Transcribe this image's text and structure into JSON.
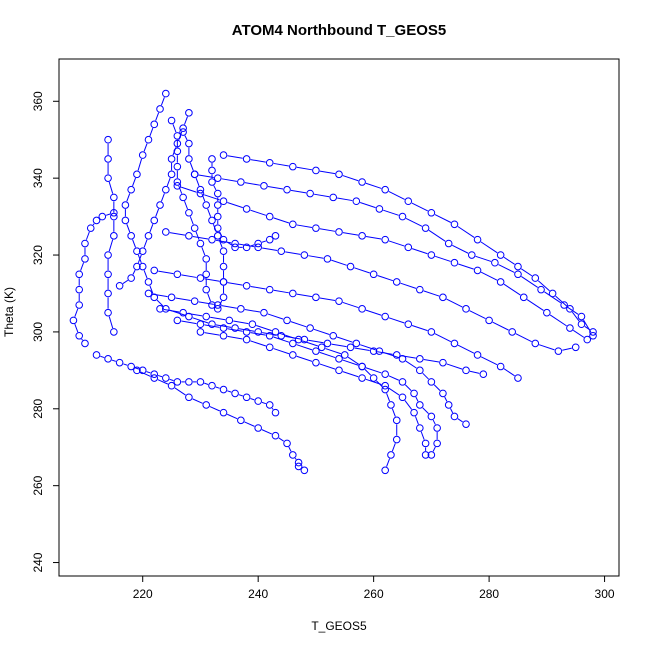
{
  "chart_data": {
    "type": "scatter",
    "title": "ATOM4 Northbound T_GEOS5",
    "xlabel": "T_GEOS5",
    "ylabel": "Theta (K)",
    "xlim": [
      205.5,
      302.5
    ],
    "ylim": [
      236.5,
      371
    ],
    "xticks": [
      220,
      240,
      260,
      280,
      300
    ],
    "yticks": [
      240,
      260,
      280,
      300,
      320,
      340,
      360
    ],
    "grid": false,
    "legend": "none",
    "marker": "open-circle",
    "connected": true,
    "color": "#0000ff",
    "series": [
      {
        "values": [
          [
            224,
            362
          ],
          [
            223,
            358
          ],
          [
            222,
            354
          ],
          [
            221,
            350
          ],
          [
            220,
            346
          ],
          [
            219,
            341
          ],
          [
            218,
            337
          ],
          [
            217,
            333
          ],
          [
            217,
            329
          ],
          [
            218,
            325
          ],
          [
            219,
            321
          ],
          [
            220,
            317
          ],
          [
            221,
            313
          ],
          [
            222,
            309
          ],
          [
            224,
            306
          ],
          [
            228,
            304
          ],
          [
            232,
            302
          ],
          [
            236,
            301
          ],
          [
            240,
            300
          ],
          [
            244,
            299
          ],
          [
            248,
            298
          ],
          [
            252,
            297
          ],
          [
            256,
            296
          ],
          [
            260,
            295
          ],
          [
            264,
            294
          ],
          [
            268,
            293
          ],
          [
            272,
            292
          ],
          [
            276,
            290
          ],
          [
            279,
            289
          ]
        ]
      },
      {
        "values": [
          [
            234,
            346
          ],
          [
            238,
            345
          ],
          [
            242,
            344
          ],
          [
            246,
            343
          ],
          [
            250,
            342
          ],
          [
            254,
            341
          ],
          [
            258,
            339
          ],
          [
            262,
            337
          ],
          [
            266,
            334
          ],
          [
            270,
            331
          ],
          [
            274,
            328
          ],
          [
            278,
            324
          ],
          [
            282,
            320
          ],
          [
            285,
            317
          ],
          [
            288,
            314
          ],
          [
            291,
            310
          ],
          [
            294,
            306
          ],
          [
            296,
            302
          ],
          [
            298,
            300
          ]
        ]
      },
      {
        "values": [
          [
            229,
            341
          ],
          [
            233,
            340
          ],
          [
            237,
            339
          ],
          [
            241,
            338
          ],
          [
            245,
            337
          ],
          [
            249,
            336
          ],
          [
            253,
            335
          ],
          [
            257,
            334
          ],
          [
            261,
            332
          ],
          [
            265,
            330
          ],
          [
            269,
            327
          ],
          [
            273,
            323
          ],
          [
            277,
            320
          ],
          [
            281,
            318
          ],
          [
            285,
            315
          ],
          [
            289,
            311
          ],
          [
            293,
            307
          ],
          [
            296,
            304
          ],
          [
            298,
            299
          ]
        ]
      },
      {
        "values": [
          [
            226,
            338
          ],
          [
            230,
            336
          ],
          [
            234,
            334
          ],
          [
            238,
            332
          ],
          [
            242,
            330
          ],
          [
            246,
            328
          ],
          [
            250,
            327
          ],
          [
            254,
            326
          ],
          [
            258,
            325
          ],
          [
            262,
            324
          ],
          [
            266,
            322
          ],
          [
            270,
            320
          ],
          [
            274,
            318
          ],
          [
            278,
            316
          ],
          [
            282,
            313
          ],
          [
            286,
            309
          ],
          [
            290,
            305
          ],
          [
            294,
            301
          ],
          [
            297,
            298
          ]
        ]
      },
      {
        "values": [
          [
            224,
            326
          ],
          [
            228,
            325
          ],
          [
            232,
            324
          ],
          [
            236,
            323
          ],
          [
            240,
            322
          ],
          [
            244,
            321
          ],
          [
            248,
            320
          ],
          [
            252,
            319
          ],
          [
            256,
            317
          ],
          [
            260,
            315
          ],
          [
            264,
            313
          ],
          [
            268,
            311
          ],
          [
            272,
            309
          ],
          [
            276,
            306
          ],
          [
            280,
            303
          ],
          [
            284,
            300
          ],
          [
            288,
            297
          ],
          [
            292,
            295
          ],
          [
            295,
            296
          ]
        ]
      },
      {
        "values": [
          [
            222,
            316
          ],
          [
            226,
            315
          ],
          [
            230,
            314
          ],
          [
            234,
            313
          ],
          [
            238,
            312
          ],
          [
            242,
            311
          ],
          [
            246,
            310
          ],
          [
            250,
            309
          ],
          [
            254,
            308
          ],
          [
            258,
            306
          ],
          [
            262,
            304
          ],
          [
            266,
            302
          ],
          [
            270,
            300
          ],
          [
            274,
            297
          ],
          [
            278,
            294
          ],
          [
            282,
            291
          ],
          [
            285,
            288
          ]
        ]
      },
      {
        "values": [
          [
            221,
            310
          ],
          [
            225,
            309
          ],
          [
            229,
            308
          ],
          [
            233,
            307
          ],
          [
            237,
            306
          ],
          [
            241,
            305
          ],
          [
            245,
            303
          ],
          [
            249,
            301
          ],
          [
            253,
            299
          ],
          [
            257,
            297
          ],
          [
            261,
            295
          ],
          [
            265,
            293
          ],
          [
            268,
            290
          ],
          [
            270,
            287
          ],
          [
            272,
            284
          ],
          [
            273,
            281
          ],
          [
            274,
            278
          ],
          [
            276,
            276
          ]
        ]
      },
      {
        "values": [
          [
            223,
            306
          ],
          [
            227,
            305
          ],
          [
            231,
            304
          ],
          [
            235,
            303
          ],
          [
            239,
            302
          ],
          [
            243,
            300
          ],
          [
            247,
            298
          ],
          [
            251,
            296
          ],
          [
            255,
            294
          ],
          [
            258,
            291
          ],
          [
            260,
            288
          ],
          [
            262,
            285
          ],
          [
            263,
            281
          ],
          [
            264,
            277
          ],
          [
            264,
            272
          ],
          [
            263,
            268
          ],
          [
            262,
            264
          ]
        ]
      },
      {
        "values": [
          [
            226,
            303
          ],
          [
            230,
            302
          ],
          [
            234,
            301
          ],
          [
            238,
            300
          ],
          [
            242,
            299
          ],
          [
            246,
            297
          ],
          [
            250,
            295
          ],
          [
            254,
            293
          ],
          [
            258,
            291
          ],
          [
            262,
            289
          ],
          [
            265,
            287
          ],
          [
            267,
            284
          ],
          [
            268,
            281
          ],
          [
            270,
            278
          ],
          [
            271,
            275
          ],
          [
            271,
            271
          ],
          [
            270,
            268
          ]
        ]
      },
      {
        "values": [
          [
            230,
            300
          ],
          [
            234,
            299
          ],
          [
            238,
            298
          ],
          [
            242,
            296
          ],
          [
            246,
            294
          ],
          [
            250,
            292
          ],
          [
            254,
            290
          ],
          [
            258,
            288
          ],
          [
            262,
            286
          ],
          [
            265,
            283
          ],
          [
            267,
            279
          ],
          [
            268,
            275
          ],
          [
            269,
            271
          ],
          [
            269,
            268
          ]
        ]
      },
      {
        "values": [
          [
            214,
            350
          ],
          [
            214,
            345
          ],
          [
            214,
            340
          ],
          [
            215,
            335
          ],
          [
            215,
            330
          ],
          [
            215,
            325
          ],
          [
            214,
            320
          ],
          [
            214,
            315
          ],
          [
            214,
            310
          ],
          [
            214,
            305
          ],
          [
            215,
            300
          ]
        ]
      },
      {
        "values": [
          [
            215,
            331
          ],
          [
            213,
            330
          ],
          [
            212,
            329
          ],
          [
            211,
            327
          ],
          [
            210,
            323
          ],
          [
            210,
            319
          ],
          [
            209,
            315
          ],
          [
            209,
            311
          ],
          [
            209,
            307
          ],
          [
            208,
            303
          ],
          [
            209,
            299
          ],
          [
            210,
            297
          ]
        ]
      },
      {
        "values": [
          [
            212,
            294
          ],
          [
            214,
            293
          ],
          [
            216,
            292
          ],
          [
            218,
            291
          ],
          [
            220,
            290
          ],
          [
            222,
            289
          ],
          [
            224,
            288
          ],
          [
            226,
            287
          ],
          [
            228,
            287
          ],
          [
            230,
            287
          ],
          [
            232,
            286
          ],
          [
            234,
            285
          ],
          [
            236,
            284
          ],
          [
            238,
            283
          ],
          [
            240,
            282
          ],
          [
            242,
            281
          ],
          [
            243,
            279
          ]
        ]
      },
      {
        "values": [
          [
            219,
            290
          ],
          [
            222,
            288
          ],
          [
            225,
            286
          ],
          [
            228,
            283
          ],
          [
            231,
            281
          ],
          [
            234,
            279
          ],
          [
            237,
            277
          ],
          [
            240,
            275
          ],
          [
            243,
            273
          ],
          [
            245,
            271
          ],
          [
            246,
            268
          ],
          [
            247,
            266
          ],
          [
            247,
            265
          ],
          [
            248,
            264
          ]
        ]
      },
      {
        "values": [
          [
            227,
            352
          ],
          [
            228,
            349
          ],
          [
            228,
            345
          ],
          [
            229,
            341
          ],
          [
            230,
            337
          ],
          [
            231,
            333
          ],
          [
            232,
            329
          ],
          [
            233,
            325
          ],
          [
            234,
            321
          ],
          [
            234,
            317
          ],
          [
            234,
            313
          ],
          [
            234,
            309
          ],
          [
            233,
            306
          ]
        ]
      },
      {
        "values": [
          [
            225,
            355
          ],
          [
            226,
            351
          ],
          [
            226,
            347
          ],
          [
            226,
            343
          ],
          [
            226,
            339
          ],
          [
            227,
            335
          ],
          [
            228,
            331
          ],
          [
            229,
            327
          ],
          [
            230,
            323
          ],
          [
            231,
            319
          ],
          [
            231,
            315
          ],
          [
            231,
            311
          ],
          [
            232,
            307
          ]
        ]
      },
      {
        "values": [
          [
            228,
            357
          ],
          [
            227,
            353
          ],
          [
            226,
            349
          ],
          [
            225,
            345
          ],
          [
            225,
            341
          ],
          [
            224,
            337
          ],
          [
            223,
            333
          ],
          [
            222,
            329
          ],
          [
            221,
            325
          ],
          [
            220,
            321
          ],
          [
            219,
            317
          ],
          [
            218,
            314
          ],
          [
            216,
            312
          ]
        ]
      },
      {
        "values": [
          [
            232,
            345
          ],
          [
            232,
            342
          ],
          [
            232,
            339
          ],
          [
            233,
            336
          ],
          [
            233,
            333
          ],
          [
            233,
            330
          ],
          [
            233,
            327
          ],
          [
            234,
            324
          ],
          [
            236,
            322
          ],
          [
            238,
            322
          ],
          [
            240,
            323
          ],
          [
            242,
            324
          ],
          [
            243,
            325
          ]
        ]
      }
    ]
  }
}
